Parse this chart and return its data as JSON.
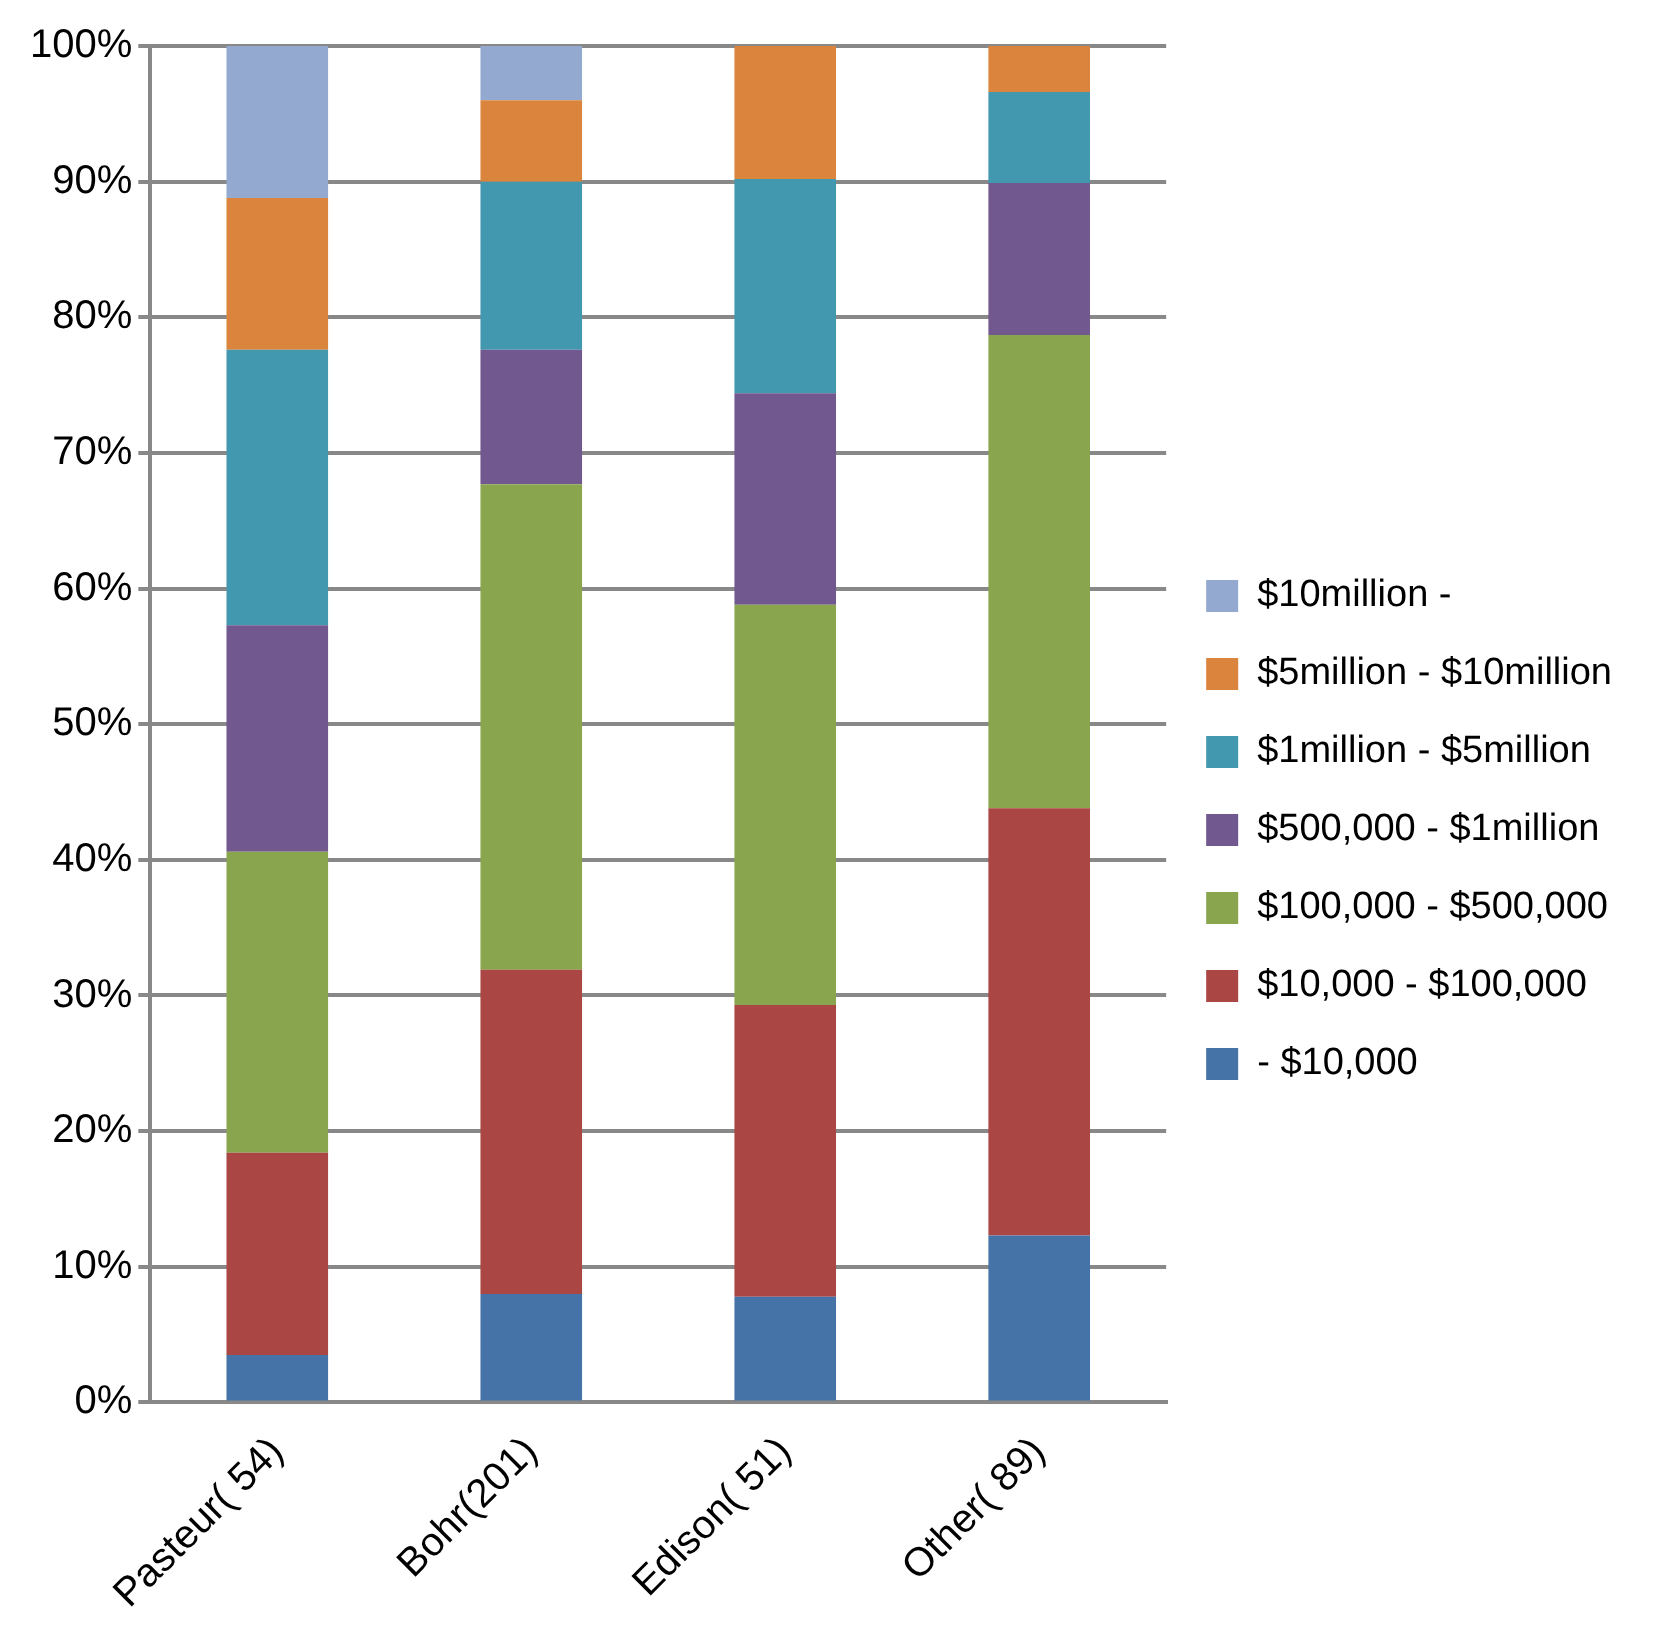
{
  "chart_data": {
    "type": "bar",
    "stacked": true,
    "categories": [
      "Pasteur( 54)",
      "Bohr(201)",
      "Edison( 51)",
      "Other( 89)"
    ],
    "series": [
      {
        "name": "- $10,000",
        "color": "#4572a7",
        "values": [
          3.5,
          8.0,
          7.8,
          12.3
        ]
      },
      {
        "name": "$10,000 - $100,000",
        "color": "#aa4643",
        "values": [
          14.9,
          23.9,
          21.5,
          31.5
        ]
      },
      {
        "name": "$100,000 - $500,000",
        "color": "#89a54e",
        "values": [
          22.2,
          35.8,
          29.5,
          34.9
        ]
      },
      {
        "name": "$500,000 - $1million",
        "color": "#71588f",
        "values": [
          16.7,
          9.9,
          15.6,
          11.2
        ]
      },
      {
        "name": "$1million - $5million",
        "color": "#4198af",
        "values": [
          20.3,
          12.4,
          15.8,
          6.7
        ]
      },
      {
        "name": "$5million - $10million",
        "color": "#db843d",
        "values": [
          11.2,
          6.0,
          9.8,
          3.4
        ]
      },
      {
        "name": "$10million -",
        "color": "#93a9cf",
        "values": [
          11.2,
          4.0,
          0,
          0
        ]
      }
    ],
    "ylim": [
      0,
      100
    ],
    "yticks": [
      {
        "value": 0,
        "label": "0%"
      },
      {
        "value": 10,
        "label": "10%"
      },
      {
        "value": 20,
        "label": "20%"
      },
      {
        "value": 30,
        "label": "30%"
      },
      {
        "value": 40,
        "label": "40%"
      },
      {
        "value": 50,
        "label": "50%"
      },
      {
        "value": 60,
        "label": "60%"
      },
      {
        "value": 70,
        "label": "70%"
      },
      {
        "value": 80,
        "label": "80%"
      },
      {
        "value": 90,
        "label": "90%"
      },
      {
        "value": 100,
        "label": "100%"
      }
    ],
    "grid": "y",
    "legend": "right"
  }
}
